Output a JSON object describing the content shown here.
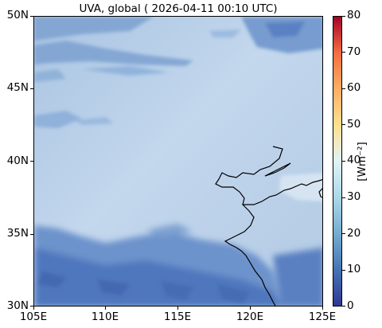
{
  "title": "UVA, global ( 2026-04-11 00:10 UTC)",
  "y_ticks": [
    "50N",
    "45N",
    "40N",
    "35N",
    "30N"
  ],
  "x_ticks": [
    "105E",
    "110E",
    "115E",
    "120E",
    "125E"
  ],
  "colorbar": {
    "ticks": [
      "80",
      "70",
      "60",
      "50",
      "40",
      "30",
      "20",
      "10",
      "0"
    ],
    "unit_label": "[Wm⁻²]",
    "range": [
      0,
      80
    ],
    "colormap": "RdYlBu_r"
  },
  "map": {
    "lon_range": [
      105,
      125
    ],
    "lat_range": [
      30,
      50
    ],
    "field_colors": {
      "background": "#b4cce4",
      "light_area": "#c4d8ec",
      "medium": "#8cb0d8",
      "dark": "#5a82c0"
    }
  }
}
